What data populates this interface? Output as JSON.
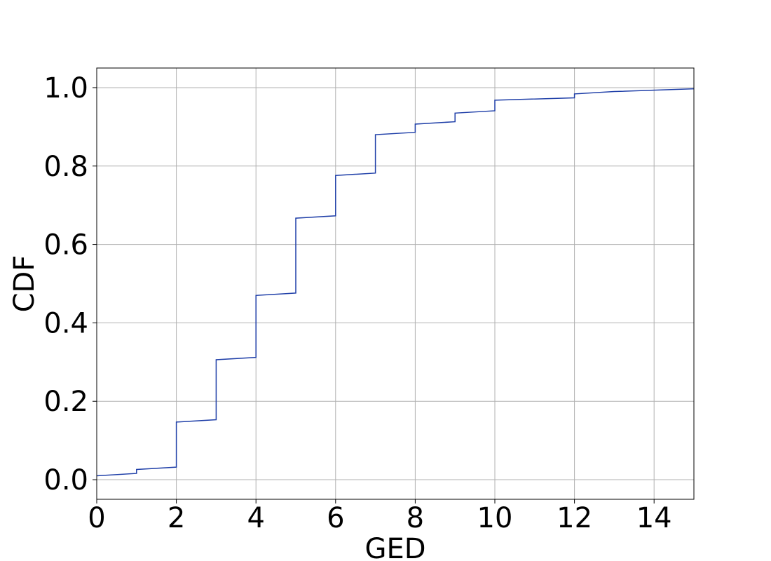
{
  "chart_data": {
    "type": "line",
    "title": "",
    "xlabel": "GED",
    "ylabel": "CDF",
    "xlim": [
      0,
      15
    ],
    "ylim": [
      -0.05,
      1.05
    ],
    "xticks": [
      0,
      2,
      4,
      6,
      8,
      10,
      12,
      14
    ],
    "xtick_labels": [
      "0",
      "2",
      "4",
      "6",
      "8",
      "10",
      "12",
      "14"
    ],
    "yticks": [
      0.0,
      0.2,
      0.4,
      0.6,
      0.8,
      1.0
    ],
    "ytick_labels": [
      "0.0",
      "0.2",
      "0.4",
      "0.6",
      "0.8",
      "1.0"
    ],
    "grid": true,
    "colors": {
      "line": "#1f3fa8",
      "grid": "#b0b0b0",
      "axis": "#000000"
    },
    "series": [
      {
        "x": [
          0,
          1,
          1,
          2,
          2,
          3,
          3,
          4,
          4,
          5,
          5,
          5,
          6,
          6,
          7,
          7,
          8,
          8,
          9,
          9,
          10,
          10,
          12,
          12,
          13,
          15
        ],
        "y": [
          0.01,
          0.016,
          0.026,
          0.032,
          0.147,
          0.153,
          0.306,
          0.312,
          0.47,
          0.476,
          0.483,
          0.667,
          0.673,
          0.776,
          0.782,
          0.88,
          0.886,
          0.907,
          0.913,
          0.935,
          0.941,
          0.968,
          0.974,
          0.984,
          0.99,
          0.997
        ]
      }
    ]
  }
}
